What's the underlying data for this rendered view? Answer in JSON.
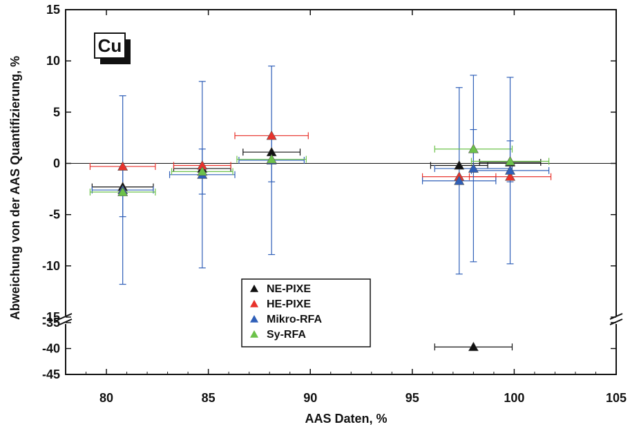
{
  "chart_data": {
    "type": "scatter",
    "title": "",
    "label_box": "Cu",
    "xlabel": "AAS Daten, %",
    "ylabel": "Abweichung von der AAS Quantifizierung, %",
    "xlim": [
      78,
      105
    ],
    "ylim_upper": [
      -15,
      15
    ],
    "ylim_lower": [
      -45,
      -35
    ],
    "xticks": [
      "80",
      "85",
      "90",
      "95",
      "100",
      "105"
    ],
    "yticks_upper": [
      "15",
      "10",
      "5",
      "0",
      "-5",
      "-10",
      "-15"
    ],
    "yticks_lower": [
      "-35",
      "-40",
      "-45"
    ],
    "grid": false,
    "legend_position": "bottom-center",
    "series": [
      {
        "name": "NE-PIXE",
        "color": "#111111",
        "points": [
          {
            "x": 80.8,
            "y": -2.3,
            "xerr": 1.5,
            "yerr": 0
          },
          {
            "x": 84.7,
            "y": -0.5,
            "xerr": 1.4,
            "yerr": 0
          },
          {
            "x": 88.1,
            "y": 1.1,
            "xerr": 1.4,
            "yerr": 0
          },
          {
            "x": 97.3,
            "y": -0.2,
            "xerr": 1.4,
            "yerr": 0
          },
          {
            "x": 99.8,
            "y": 0.1,
            "xerr": 1.5,
            "yerr": 0
          },
          {
            "x": 98.0,
            "y": -39.7,
            "xerr": 1.9,
            "yerr": 0
          }
        ]
      },
      {
        "name": "HE-PIXE",
        "color": "#e8322b",
        "points": [
          {
            "x": 80.8,
            "y": -0.3,
            "xerr": 1.6,
            "yerr": 0
          },
          {
            "x": 84.7,
            "y": -0.2,
            "xerr": 1.4,
            "yerr": 0
          },
          {
            "x": 88.1,
            "y": 2.7,
            "xerr": 1.8,
            "yerr": 0
          },
          {
            "x": 97.3,
            "y": -1.3,
            "xerr": 1.8,
            "yerr": 0
          },
          {
            "x": 99.8,
            "y": -1.3,
            "xerr": 2.0,
            "yerr": 0
          }
        ]
      },
      {
        "name": "Mikro-RFA",
        "color": "#2f5fb8",
        "points": [
          {
            "x": 80.8,
            "y": -2.6,
            "xerr": 1.5,
            "yerr": 9.2
          },
          {
            "x": 84.7,
            "y": -1.1,
            "xerr": 1.6,
            "yerr": 9.1
          },
          {
            "x": 88.1,
            "y": 0.3,
            "xerr": 1.6,
            "yerr": 9.2
          },
          {
            "x": 97.3,
            "y": -1.7,
            "xerr": 1.8,
            "yerr": 9.1
          },
          {
            "x": 98.0,
            "y": -0.5,
            "xerr": 1.9,
            "yerr": 9.1
          },
          {
            "x": 99.8,
            "y": -0.7,
            "xerr": 1.9,
            "yerr": 9.1
          }
        ]
      },
      {
        "name": "Sy-RFA",
        "color": "#6cc24a",
        "points": [
          {
            "x": 80.8,
            "y": -2.8,
            "xerr": 1.6,
            "yerr": 2.4
          },
          {
            "x": 84.7,
            "y": -0.8,
            "xerr": 1.5,
            "yerr": 2.2
          },
          {
            "x": 88.1,
            "y": 0.4,
            "xerr": 1.7,
            "yerr": 2.2
          },
          {
            "x": 98.0,
            "y": 1.4,
            "xerr": 1.9,
            "yerr": 1.9
          },
          {
            "x": 99.8,
            "y": 0.2,
            "xerr": 1.9,
            "yerr": 2.0
          }
        ]
      }
    ],
    "errorbar_color": "#2f5fb8"
  }
}
